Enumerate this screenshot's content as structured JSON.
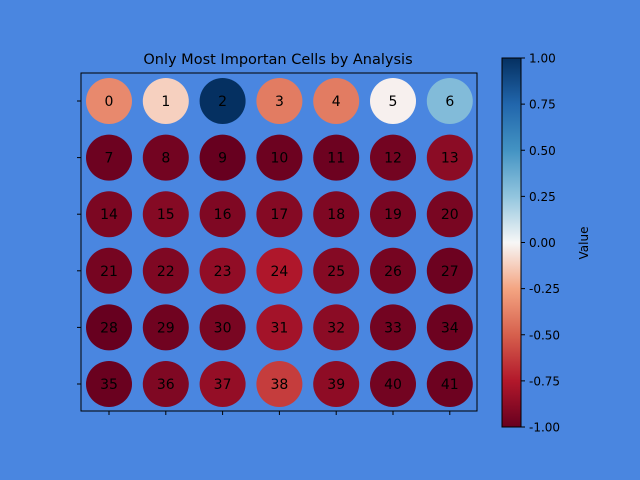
{
  "chart_data": {
    "type": "heatmap",
    "title": "Only Most Importan Cells by Analysis",
    "rows": 6,
    "cols": 7,
    "cells": [
      {
        "label": "0",
        "value": -0.35
      },
      {
        "label": "1",
        "value": -0.12
      },
      {
        "label": "2",
        "value": 1.0
      },
      {
        "label": "3",
        "value": -0.4
      },
      {
        "label": "4",
        "value": -0.4
      },
      {
        "label": "5",
        "value": -0.02
      },
      {
        "label": "6",
        "value": 0.3
      },
      {
        "label": "7",
        "value": -0.98
      },
      {
        "label": "8",
        "value": -0.96
      },
      {
        "label": "9",
        "value": -1.0
      },
      {
        "label": "10",
        "value": -0.98
      },
      {
        "label": "11",
        "value": -0.98
      },
      {
        "label": "12",
        "value": -0.96
      },
      {
        "label": "13",
        "value": -0.88
      },
      {
        "label": "14",
        "value": -0.93
      },
      {
        "label": "15",
        "value": -0.9
      },
      {
        "label": "16",
        "value": -0.92
      },
      {
        "label": "17",
        "value": -0.9
      },
      {
        "label": "18",
        "value": -0.92
      },
      {
        "label": "19",
        "value": -0.94
      },
      {
        "label": "20",
        "value": -0.94
      },
      {
        "label": "21",
        "value": -0.95
      },
      {
        "label": "22",
        "value": -0.92
      },
      {
        "label": "23",
        "value": -0.86
      },
      {
        "label": "24",
        "value": -0.76
      },
      {
        "label": "25",
        "value": -0.9
      },
      {
        "label": "26",
        "value": -0.95
      },
      {
        "label": "27",
        "value": -0.98
      },
      {
        "label": "28",
        "value": -1.0
      },
      {
        "label": "29",
        "value": -0.97
      },
      {
        "label": "30",
        "value": -0.94
      },
      {
        "label": "31",
        "value": -0.8
      },
      {
        "label": "32",
        "value": -0.88
      },
      {
        "label": "33",
        "value": -0.96
      },
      {
        "label": "34",
        "value": -0.98
      },
      {
        "label": "35",
        "value": -0.99
      },
      {
        "label": "36",
        "value": -0.92
      },
      {
        "label": "37",
        "value": -0.85
      },
      {
        "label": "38",
        "value": -0.62
      },
      {
        "label": "39",
        "value": -0.87
      },
      {
        "label": "40",
        "value": -0.96
      },
      {
        "label": "41",
        "value": -0.98
      }
    ],
    "colorbar": {
      "label": "Value",
      "colormap": "RdBu",
      "range": [
        -1.0,
        1.0
      ],
      "ticks": [
        "-1.00",
        "-0.75",
        "-0.50",
        "-0.25",
        "0.00",
        "0.25",
        "0.50",
        "0.75",
        "1.00"
      ]
    },
    "grid": false
  },
  "colors": {
    "figure_background": "#4a86e0",
    "axes_background": "#4a86e0"
  }
}
